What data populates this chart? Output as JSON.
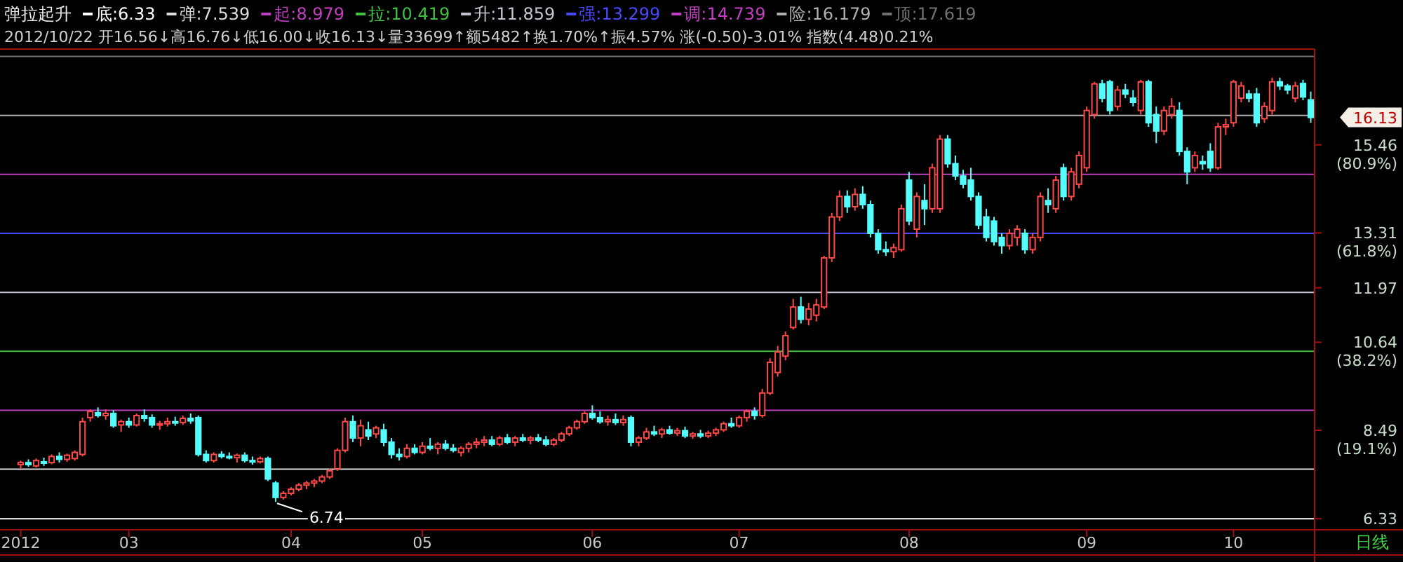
{
  "chart_data": {
    "type": "candlestick",
    "title": "弹拉起升",
    "subtitle": "2012/10/22 开16.56↓高16.76↓低16.00↓收16.13↓量33699↑额5482↑换1.70%↑振4.57% 涨(-0.50)-3.01% 指数(4.48)0.21%",
    "categories": [
      "2012",
      null,
      null,
      null,
      null,
      null,
      null,
      null,
      null,
      null,
      null,
      null,
      null,
      null,
      "03",
      null,
      null,
      null,
      null,
      null,
      null,
      null,
      null,
      null,
      null,
      null,
      null,
      null,
      null,
      null,
      null,
      null,
      null,
      null,
      null,
      "04",
      null,
      null,
      null,
      null,
      null,
      null,
      null,
      null,
      null,
      null,
      null,
      null,
      null,
      null,
      null,
      null,
      "05",
      null,
      null,
      null,
      null,
      null,
      null,
      null,
      null,
      null,
      null,
      null,
      null,
      null,
      null,
      null,
      null,
      null,
      null,
      null,
      null,
      null,
      "06",
      null,
      null,
      null,
      null,
      null,
      null,
      null,
      null,
      null,
      null,
      null,
      null,
      null,
      null,
      null,
      null,
      null,
      null,
      "07",
      null,
      null,
      null,
      null,
      null,
      null,
      null,
      null,
      null,
      null,
      null,
      null,
      null,
      null,
      null,
      null,
      null,
      null,
      null,
      null,
      null,
      "08",
      null,
      null,
      null,
      null,
      null,
      null,
      null,
      null,
      null,
      null,
      null,
      null,
      null,
      null,
      null,
      null,
      null,
      null,
      null,
      null,
      null,
      null,
      "09",
      null,
      null,
      null,
      null,
      null,
      null,
      null,
      null,
      null,
      null,
      null,
      null,
      null,
      null,
      null,
      null,
      null,
      null,
      "10",
      null,
      null,
      null,
      null,
      null,
      null,
      null,
      null,
      null,
      null
    ],
    "ohlc": [
      [
        7.65,
        7.75,
        7.55,
        7.7
      ],
      [
        7.7,
        7.78,
        7.6,
        7.65
      ],
      [
        7.62,
        7.8,
        7.58,
        7.75
      ],
      [
        7.72,
        7.82,
        7.62,
        7.7
      ],
      [
        7.7,
        7.9,
        7.66,
        7.85
      ],
      [
        7.85,
        7.95,
        7.7,
        7.78
      ],
      [
        7.78,
        7.92,
        7.72,
        7.88
      ],
      [
        7.8,
        8.0,
        7.75,
        7.95
      ],
      [
        7.9,
        8.8,
        7.85,
        8.7
      ],
      [
        8.8,
        9.0,
        8.7,
        8.95
      ],
      [
        8.92,
        9.05,
        8.8,
        8.85
      ],
      [
        8.85,
        9.0,
        8.75,
        8.9
      ],
      [
        8.9,
        8.98,
        8.55,
        8.6
      ],
      [
        8.62,
        8.75,
        8.45,
        8.7
      ],
      [
        8.7,
        8.8,
        8.55,
        8.62
      ],
      [
        8.62,
        8.9,
        8.58,
        8.85
      ],
      [
        8.85,
        9.0,
        8.7,
        8.78
      ],
      [
        8.8,
        8.88,
        8.55,
        8.62
      ],
      [
        8.62,
        8.72,
        8.5,
        8.65
      ],
      [
        8.65,
        8.8,
        8.58,
        8.7
      ],
      [
        8.7,
        8.82,
        8.6,
        8.68
      ],
      [
        8.68,
        8.85,
        8.62,
        8.78
      ],
      [
        8.78,
        8.9,
        8.65,
        8.72
      ],
      [
        8.8,
        8.85,
        7.85,
        7.9
      ],
      [
        7.9,
        8.0,
        7.7,
        7.75
      ],
      [
        7.75,
        7.95,
        7.7,
        7.9
      ],
      [
        7.9,
        7.98,
        7.8,
        7.85
      ],
      [
        7.85,
        7.95,
        7.78,
        7.82
      ],
      [
        7.82,
        7.92,
        7.7,
        7.88
      ],
      [
        7.88,
        7.95,
        7.7,
        7.75
      ],
      [
        7.75,
        7.85,
        7.65,
        7.72
      ],
      [
        7.72,
        7.85,
        7.68,
        7.8
      ],
      [
        7.8,
        7.85,
        7.25,
        7.3
      ],
      [
        7.2,
        7.25,
        6.74,
        6.85
      ],
      [
        6.85,
        7.0,
        6.8,
        6.95
      ],
      [
        6.95,
        7.1,
        6.9,
        7.05
      ],
      [
        7.05,
        7.2,
        7.0,
        7.15
      ],
      [
        7.15,
        7.25,
        7.05,
        7.2
      ],
      [
        7.2,
        7.3,
        7.1,
        7.25
      ],
      [
        7.25,
        7.4,
        7.2,
        7.35
      ],
      [
        7.35,
        7.55,
        7.3,
        7.5
      ],
      [
        7.55,
        8.05,
        7.5,
        8.0
      ],
      [
        8.0,
        8.8,
        7.95,
        8.7
      ],
      [
        8.7,
        8.85,
        8.2,
        8.3
      ],
      [
        8.3,
        8.75,
        8.1,
        8.6
      ],
      [
        8.5,
        8.7,
        8.25,
        8.35
      ],
      [
        8.4,
        8.6,
        8.3,
        8.55
      ],
      [
        8.5,
        8.65,
        8.1,
        8.2
      ],
      [
        8.2,
        8.3,
        7.8,
        7.9
      ],
      [
        7.9,
        8.05,
        7.75,
        7.85
      ],
      [
        7.85,
        8.15,
        7.8,
        8.05
      ],
      [
        8.05,
        8.15,
        7.9,
        7.95
      ],
      [
        7.95,
        8.2,
        7.9,
        8.1
      ],
      [
        8.1,
        8.3,
        8.0,
        8.05
      ],
      [
        8.05,
        8.2,
        7.9,
        8.15
      ],
      [
        8.15,
        8.25,
        8.0,
        8.05
      ],
      [
        8.05,
        8.15,
        7.95,
        8.0
      ],
      [
        7.95,
        8.1,
        7.85,
        8.05
      ],
      [
        8.05,
        8.2,
        7.95,
        8.15
      ],
      [
        8.15,
        8.3,
        8.05,
        8.2
      ],
      [
        8.2,
        8.35,
        8.1,
        8.25
      ],
      [
        8.25,
        8.35,
        8.1,
        8.15
      ],
      [
        8.15,
        8.35,
        8.1,
        8.3
      ],
      [
        8.3,
        8.4,
        8.15,
        8.2
      ],
      [
        8.2,
        8.35,
        8.1,
        8.3
      ],
      [
        8.3,
        8.4,
        8.2,
        8.25
      ],
      [
        8.25,
        8.35,
        8.15,
        8.3
      ],
      [
        8.3,
        8.4,
        8.2,
        8.25
      ],
      [
        8.25,
        8.35,
        8.1,
        8.15
      ],
      [
        8.15,
        8.3,
        8.1,
        8.25
      ],
      [
        8.25,
        8.45,
        8.2,
        8.4
      ],
      [
        8.4,
        8.6,
        8.35,
        8.55
      ],
      [
        8.55,
        8.75,
        8.5,
        8.7
      ],
      [
        8.7,
        8.95,
        8.65,
        8.9
      ],
      [
        8.9,
        9.1,
        8.75,
        8.8
      ],
      [
        8.8,
        8.95,
        8.65,
        8.7
      ],
      [
        8.7,
        8.85,
        8.6,
        8.75
      ],
      [
        8.75,
        8.9,
        8.62,
        8.68
      ],
      [
        8.68,
        8.85,
        8.6,
        8.75
      ],
      [
        8.8,
        8.85,
        8.1,
        8.2
      ],
      [
        8.2,
        8.35,
        8.1,
        8.3
      ],
      [
        8.3,
        8.55,
        8.25,
        8.45
      ],
      [
        8.45,
        8.6,
        8.35,
        8.4
      ],
      [
        8.4,
        8.55,
        8.3,
        8.5
      ],
      [
        8.5,
        8.6,
        8.38,
        8.42
      ],
      [
        8.42,
        8.55,
        8.35,
        8.48
      ],
      [
        8.48,
        8.58,
        8.3,
        8.35
      ],
      [
        8.35,
        8.45,
        8.28,
        8.4
      ],
      [
        8.4,
        8.5,
        8.3,
        8.35
      ],
      [
        8.35,
        8.48,
        8.3,
        8.42
      ],
      [
        8.42,
        8.55,
        8.35,
        8.5
      ],
      [
        8.5,
        8.7,
        8.45,
        8.65
      ],
      [
        8.65,
        8.8,
        8.55,
        8.6
      ],
      [
        8.6,
        8.85,
        8.55,
        8.8
      ],
      [
        8.8,
        9.0,
        8.7,
        8.95
      ],
      [
        8.95,
        9.05,
        8.75,
        8.85
      ],
      [
        8.85,
        9.5,
        8.8,
        9.4
      ],
      [
        9.4,
        10.25,
        9.35,
        10.15
      ],
      [
        9.9,
        10.55,
        9.8,
        10.4
      ],
      [
        10.3,
        10.9,
        10.2,
        10.8
      ],
      [
        11.0,
        11.7,
        10.95,
        11.5
      ],
      [
        11.5,
        11.75,
        11.1,
        11.2
      ],
      [
        11.2,
        11.6,
        11.05,
        11.45
      ],
      [
        11.3,
        11.7,
        11.15,
        11.55
      ],
      [
        11.5,
        12.75,
        11.45,
        12.7
      ],
      [
        12.7,
        13.8,
        12.6,
        13.7
      ],
      [
        13.7,
        14.35,
        13.6,
        14.2
      ],
      [
        14.2,
        14.35,
        13.8,
        13.95
      ],
      [
        13.95,
        14.4,
        13.85,
        14.25
      ],
      [
        14.25,
        14.45,
        13.9,
        14.0
      ],
      [
        14.0,
        14.1,
        13.2,
        13.3
      ],
      [
        13.3,
        13.4,
        12.8,
        12.9
      ],
      [
        12.9,
        13.1,
        12.75,
        12.85
      ],
      [
        12.85,
        13.05,
        12.7,
        12.95
      ],
      [
        12.9,
        14.0,
        12.85,
        13.9
      ],
      [
        14.6,
        14.8,
        13.5,
        13.6
      ],
      [
        13.4,
        14.3,
        13.2,
        14.2
      ],
      [
        14.1,
        14.5,
        13.5,
        13.9
      ],
      [
        13.9,
        15.0,
        13.8,
        14.9
      ],
      [
        13.9,
        15.7,
        13.8,
        15.6
      ],
      [
        15.6,
        15.7,
        14.9,
        15.0
      ],
      [
        15.0,
        15.2,
        14.6,
        14.7
      ],
      [
        14.7,
        14.85,
        14.4,
        14.5
      ],
      [
        14.6,
        14.9,
        14.1,
        14.2
      ],
      [
        14.2,
        14.3,
        13.4,
        13.5
      ],
      [
        13.7,
        13.9,
        13.1,
        13.2
      ],
      [
        13.6,
        13.7,
        13.0,
        13.1
      ],
      [
        13.2,
        13.3,
        12.8,
        13.0
      ],
      [
        13.0,
        13.4,
        12.9,
        13.3
      ],
      [
        13.2,
        13.5,
        13.0,
        13.4
      ],
      [
        13.3,
        13.4,
        12.8,
        12.9
      ],
      [
        12.9,
        13.3,
        12.8,
        13.2
      ],
      [
        13.2,
        14.3,
        13.1,
        14.2
      ],
      [
        14.1,
        14.4,
        13.8,
        14.0
      ],
      [
        13.9,
        14.7,
        13.8,
        14.6
      ],
      [
        14.9,
        15.0,
        14.1,
        14.2
      ],
      [
        14.2,
        14.9,
        14.1,
        14.8
      ],
      [
        14.5,
        15.3,
        14.4,
        15.2
      ],
      [
        14.9,
        16.4,
        14.8,
        16.3
      ],
      [
        16.2,
        17.0,
        16.1,
        16.95
      ],
      [
        16.95,
        17.05,
        16.5,
        16.6
      ],
      [
        17.0,
        17.05,
        16.2,
        16.3
      ],
      [
        16.4,
        16.9,
        16.3,
        16.8
      ],
      [
        16.8,
        16.95,
        16.6,
        16.7
      ],
      [
        16.6,
        16.8,
        16.4,
        16.5
      ],
      [
        16.3,
        17.05,
        16.2,
        17.0
      ],
      [
        17.0,
        17.05,
        15.9,
        16.0
      ],
      [
        16.2,
        16.4,
        15.5,
        15.8
      ],
      [
        15.8,
        16.4,
        15.7,
        16.3
      ],
      [
        16.2,
        16.6,
        16.1,
        16.4
      ],
      [
        16.3,
        16.5,
        15.2,
        15.3
      ],
      [
        15.3,
        15.4,
        14.5,
        14.8
      ],
      [
        14.9,
        15.3,
        14.8,
        15.2
      ],
      [
        15.05,
        15.2,
        14.85,
        15.0
      ],
      [
        15.3,
        15.5,
        14.8,
        14.9
      ],
      [
        14.9,
        16.0,
        14.85,
        15.9
      ],
      [
        15.9,
        16.1,
        15.7,
        15.95
      ],
      [
        16.0,
        17.05,
        15.9,
        17.0
      ],
      [
        16.6,
        17.0,
        16.5,
        16.9
      ],
      [
        16.7,
        16.8,
        16.5,
        16.6
      ],
      [
        16.7,
        16.85,
        15.9,
        16.0
      ],
      [
        16.1,
        16.5,
        16.0,
        16.4
      ],
      [
        16.3,
        17.1,
        16.2,
        17.0
      ],
      [
        17.0,
        17.1,
        16.8,
        16.9
      ],
      [
        16.9,
        16.95,
        16.7,
        16.8
      ],
      [
        16.6,
        17.0,
        16.5,
        16.9
      ],
      [
        16.96,
        17.05,
        16.55,
        16.63
      ],
      [
        16.56,
        16.76,
        16.0,
        16.13
      ]
    ],
    "ylim": [
      6.06,
      17.8
    ],
    "yticks": [
      {
        "value": 6.33,
        "label": "6.33"
      },
      {
        "value": 8.49,
        "label": "8.49\n(19.1%)"
      },
      {
        "value": 10.64,
        "label": "10.64\n(38.2%)"
      },
      {
        "value": 11.97,
        "label": "11.97"
      },
      {
        "value": 13.31,
        "label": "13.31\n(61.8%)"
      },
      {
        "value": 15.46,
        "label": "15.46\n(80.9%)"
      }
    ],
    "ref_lines": [
      {
        "axis": "y",
        "value": 6.33,
        "label": "底:6.33",
        "color": "#ffffff"
      },
      {
        "axis": "y",
        "value": 7.539,
        "label": "弹:7.539",
        "color": "#dcdcdc"
      },
      {
        "axis": "y",
        "value": 8.979,
        "label": "起:8.979",
        "color": "#c040c0"
      },
      {
        "axis": "y",
        "value": 10.419,
        "label": "拉:10.419",
        "color": "#40c040"
      },
      {
        "axis": "y",
        "value": 11.859,
        "label": "升:11.859",
        "color": "#c4c4d0"
      },
      {
        "axis": "y",
        "value": 13.299,
        "label": "强:13.299",
        "color": "#4848ff"
      },
      {
        "axis": "y",
        "value": 14.739,
        "label": "调:14.739",
        "color": "#c040c0"
      },
      {
        "axis": "y",
        "value": 16.179,
        "label": "险:16.179",
        "color": "#b0b0b0"
      },
      {
        "axis": "y",
        "value": 17.619,
        "label": "顶:17.619",
        "color": "#707070"
      }
    ],
    "legend": "top left",
    "annotations": [
      "6.74",
      "16.13",
      "日线"
    ]
  }
}
